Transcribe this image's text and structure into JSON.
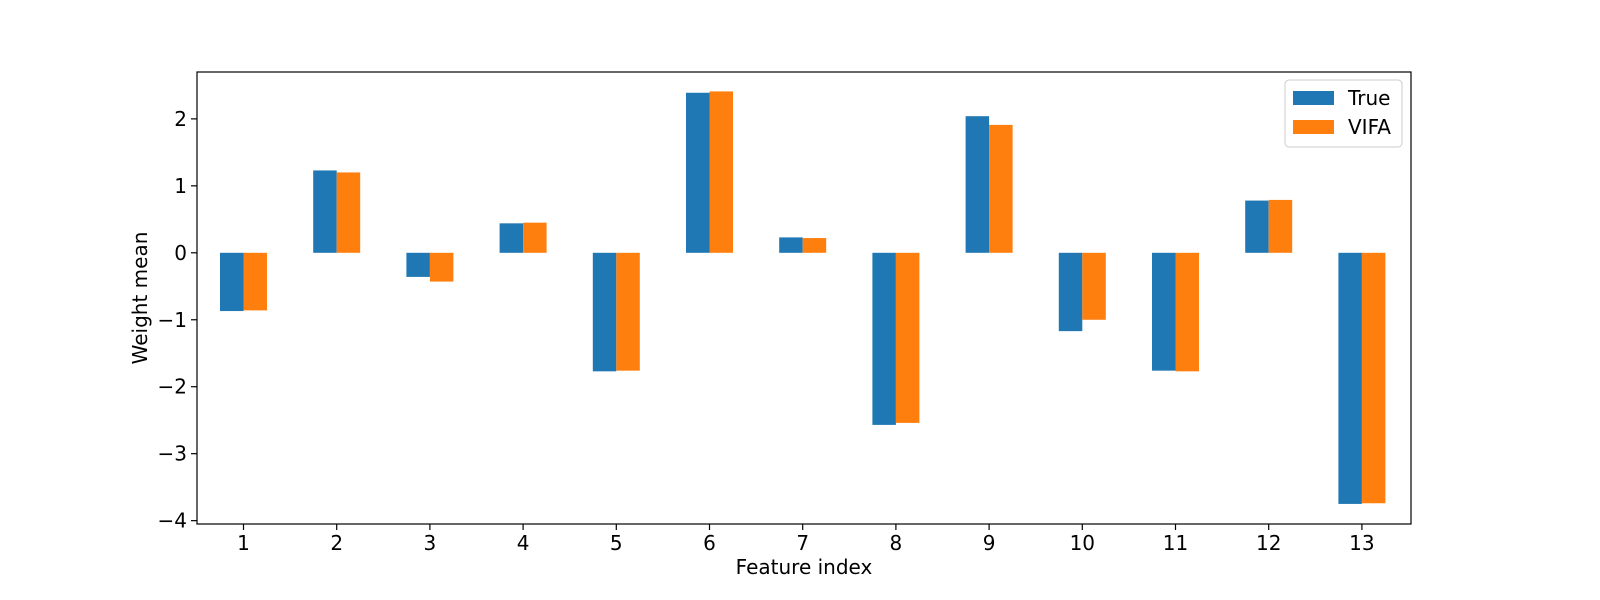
{
  "chart_data": {
    "type": "bar",
    "title": "",
    "xlabel": "Feature index",
    "ylabel": "Weight mean",
    "categories": [
      "1",
      "2",
      "3",
      "4",
      "5",
      "6",
      "7",
      "8",
      "9",
      "10",
      "11",
      "12",
      "13"
    ],
    "series": [
      {
        "name": "True",
        "color": "#1f77b4",
        "values": [
          -0.87,
          1.23,
          -0.36,
          0.44,
          -1.77,
          2.39,
          0.23,
          -2.57,
          2.04,
          -1.17,
          -1.76,
          0.78,
          -3.75
        ]
      },
      {
        "name": "VIFA",
        "color": "#ff7f0e",
        "values": [
          -0.86,
          1.2,
          -0.43,
          0.45,
          -1.76,
          2.41,
          0.22,
          -2.54,
          1.91,
          -1.0,
          -1.77,
          0.79,
          -3.74
        ]
      }
    ],
    "ylim": [
      -4.05,
      2.7
    ],
    "yticks": [
      -4,
      -3,
      -2,
      -1,
      0,
      1,
      2
    ],
    "grid": false,
    "legend_position": "top-right"
  }
}
